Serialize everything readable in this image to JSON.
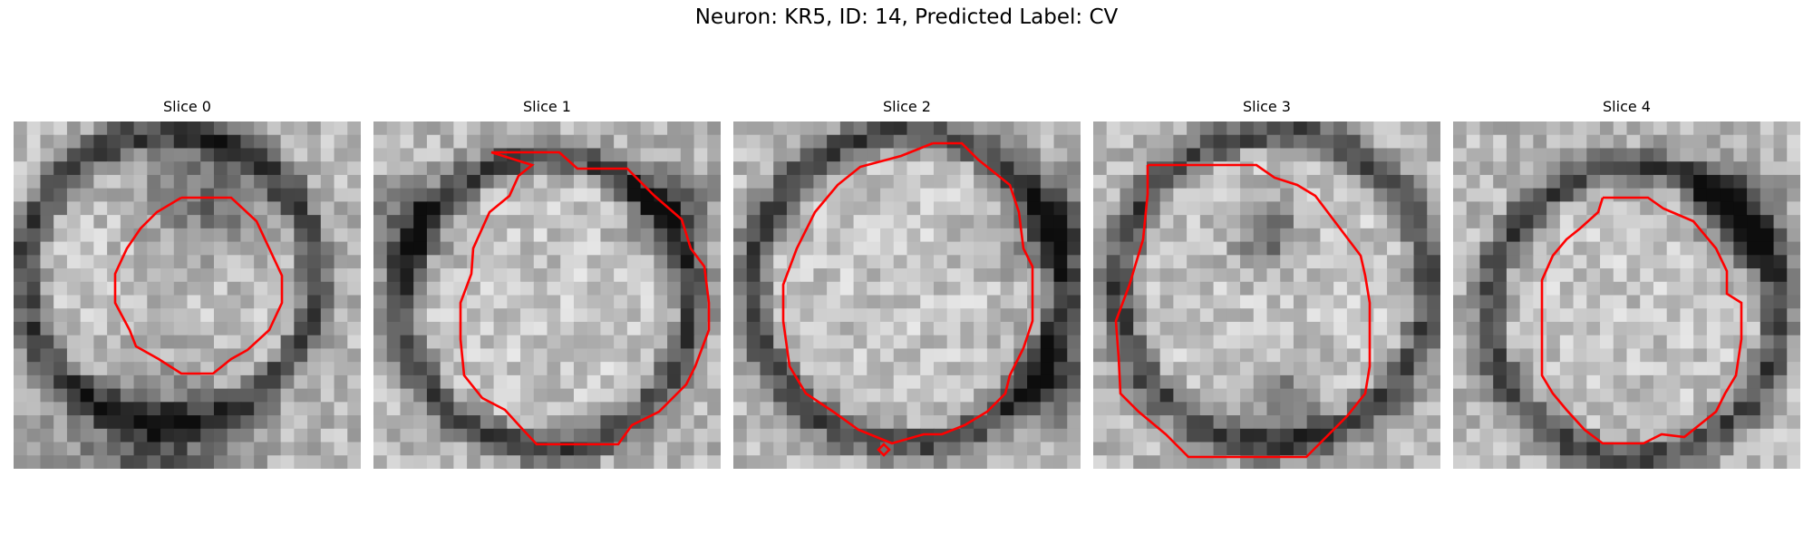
{
  "figure": {
    "title": "Neuron: KR5, ID: 14, Predicted Label: CV"
  },
  "contour_color": "#ff0000",
  "panels": [
    {
      "title": "Slice 0"
    },
    {
      "title": "Slice 1"
    },
    {
      "title": "Slice 2"
    },
    {
      "title": "Slice 3"
    },
    {
      "title": "Slice 4"
    }
  ]
}
